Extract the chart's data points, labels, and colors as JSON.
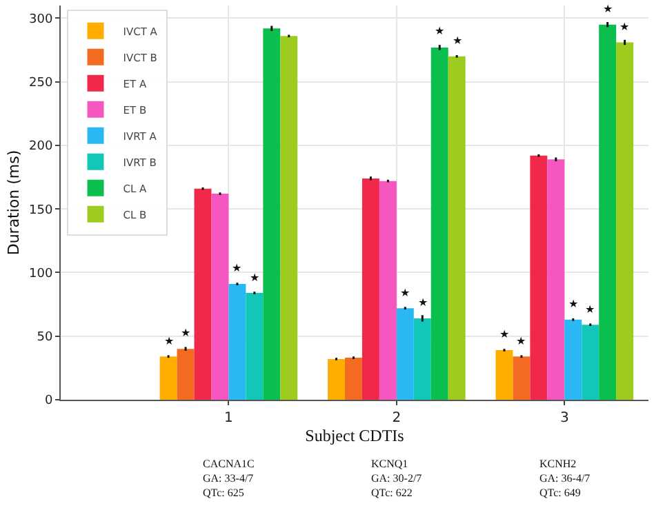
{
  "chart_data": {
    "type": "bar",
    "xlabel": "Subject CDTIs",
    "ylabel": "Duration (ms)",
    "categories": [
      "1",
      "2",
      "3"
    ],
    "series": [
      {
        "name": "IVCT A",
        "color": "#ffae00",
        "values": [
          34,
          32,
          39
        ],
        "errors": [
          1,
          1,
          1
        ],
        "value_labels": [
          "★",
          null,
          "★"
        ]
      },
      {
        "name": "IVCT B",
        "color": "#f26b21",
        "values": [
          40,
          33,
          34
        ],
        "errors": [
          1.5,
          1,
          1
        ],
        "value_labels": [
          "★",
          null,
          "★"
        ]
      },
      {
        "name": "ET A",
        "color": "#f0284a",
        "values": [
          166,
          174,
          192
        ],
        "errors": [
          1,
          1.5,
          1
        ]
      },
      {
        "name": "ET B",
        "color": "#f556c0",
        "values": [
          162,
          172,
          189
        ],
        "errors": [
          1,
          1,
          1.5
        ]
      },
      {
        "name": "IVRT A",
        "color": "#2ab8f5",
        "values": [
          91,
          72,
          63
        ],
        "errors": [
          1,
          1,
          1
        ],
        "value_labels": [
          "★",
          "★",
          "★"
        ]
      },
      {
        "name": "IVRT B",
        "color": "#12c7b8",
        "values": [
          84,
          64,
          59
        ],
        "errors": [
          1,
          2.5,
          1
        ],
        "value_labels": [
          "★",
          "★",
          "★"
        ]
      },
      {
        "name": "CL A",
        "color": "#0bbf4f",
        "values": [
          292,
          277,
          295
        ],
        "errors": [
          2,
          2,
          2
        ],
        "value_labels": [
          null,
          "★",
          "★"
        ]
      },
      {
        "name": "CL B",
        "color": "#9dcc1f",
        "values": [
          286,
          270,
          281
        ],
        "errors": [
          1,
          1,
          2
        ],
        "value_labels": [
          null,
          "★",
          "★"
        ]
      }
    ],
    "ylim": [
      0,
      310
    ],
    "yticks": [
      0,
      50,
      100,
      150,
      200,
      250,
      300
    ],
    "grid": true,
    "legend": "top left",
    "annotations": [
      "CACNA1C\nGA: 33-4/7\nQTc: 625",
      "KCNQ1\nGA: 30-2/7\nQTc: 622",
      "KCNH2\nGA: 36-4/7\nQTc: 649"
    ]
  }
}
